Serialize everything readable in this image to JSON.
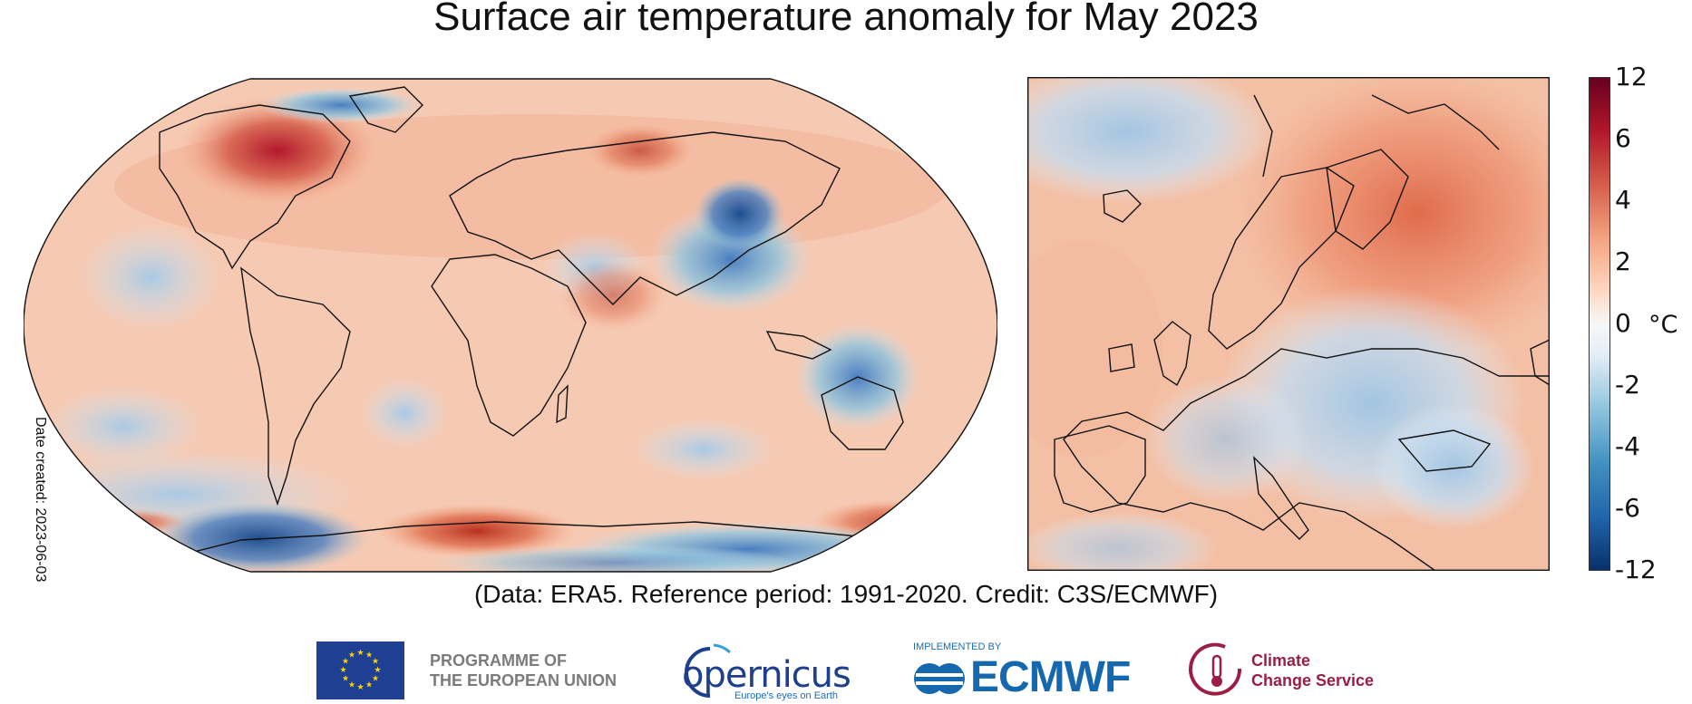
{
  "title": "Surface air temperature anomaly for May 2023",
  "credit": "(Data: ERA5.  Reference period: 1991-2020.  Credit: C3S/ECMWF)",
  "date_created": "Date created: 2023-06-03",
  "colorbar": {
    "unit": "°C",
    "ticks": [
      "12",
      "6",
      "4",
      "2",
      "0",
      "-2",
      "-4",
      "-6",
      "-12"
    ],
    "colors": [
      "#08306b",
      "#2166ac",
      "#4393c3",
      "#92c5de",
      "#f7f7f7",
      "#fddbc7",
      "#f4a582",
      "#d6604d",
      "#b2182b",
      "#67001f"
    ]
  },
  "maps": {
    "world": {
      "projection": "robinson",
      "region": "global"
    },
    "europe": {
      "region": "europe"
    }
  },
  "logos": {
    "eu_line1": "PROGRAMME OF",
    "eu_line2": "THE EUROPEAN UNION",
    "copernicus_word": "opernicus",
    "copernicus_tagline": "Europe's eyes on Earth",
    "ecmwf_small": "IMPLEMENTED BY",
    "ecmwf_word": "ECMWF",
    "ccs_line1": "Climate",
    "ccs_line2": "Change Service"
  }
}
